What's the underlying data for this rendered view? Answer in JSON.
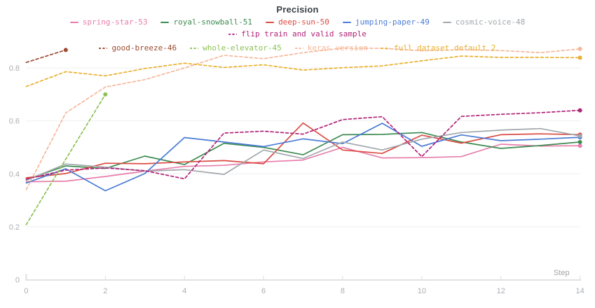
{
  "chart_data": {
    "type": "line",
    "title": "Precision",
    "xlabel": "Step",
    "ylabel": "",
    "x_range": [
      0,
      14
    ],
    "x_ticks": [
      0,
      2,
      4,
      6,
      8,
      10,
      12,
      14
    ],
    "y_ticks": [
      0,
      0.2,
      0.4,
      0.6,
      0.8
    ],
    "ylim": [
      0,
      0.95
    ],
    "grid": "horizontal",
    "legend_position": "top",
    "x": [
      0,
      1,
      2,
      3,
      4,
      5,
      6,
      7,
      8,
      9,
      10,
      11,
      12,
      13,
      14
    ],
    "series": [
      {
        "name": "spring-star-53",
        "color": "#e77daa",
        "dash": false,
        "values": [
          0.37,
          0.372,
          0.39,
          0.41,
          0.428,
          0.432,
          0.445,
          0.452,
          0.5,
          0.46,
          0.461,
          0.465,
          0.512,
          0.505,
          0.506
        ]
      },
      {
        "name": "royal-snowball-51",
        "color": "#3d8b51",
        "dash": false,
        "values": [
          0.378,
          0.43,
          0.42,
          0.467,
          0.435,
          0.515,
          0.5,
          0.472,
          0.548,
          0.549,
          0.556,
          0.52,
          0.496,
          0.507,
          0.52
        ]
      },
      {
        "name": "deep-sun-50",
        "color": "#db4b43",
        "dash": false,
        "values": [
          0.385,
          0.401,
          0.44,
          0.438,
          0.445,
          0.45,
          0.438,
          0.592,
          0.49,
          0.477,
          0.546,
          0.516,
          0.548,
          0.551,
          0.548
        ]
      },
      {
        "name": "jumping-paper-49",
        "color": "#4a7bd5",
        "dash": false,
        "values": [
          0.365,
          0.419,
          0.336,
          0.401,
          0.537,
          0.52,
          0.503,
          0.532,
          0.514,
          0.591,
          0.504,
          0.547,
          0.525,
          0.531,
          0.538
        ]
      },
      {
        "name": "cosmic-voice-48",
        "color": "#a2a7ac",
        "dash": false,
        "values": [
          0.375,
          0.437,
          0.425,
          0.41,
          0.416,
          0.398,
          0.49,
          0.458,
          0.52,
          0.49,
          0.531,
          0.556,
          0.565,
          0.571,
          0.543
        ]
      },
      {
        "name": "flip train and valid sample",
        "color": "#b02378",
        "dash": true,
        "values": [
          0.38,
          0.414,
          0.422,
          0.412,
          0.381,
          0.554,
          0.561,
          0.55,
          0.605,
          0.616,
          0.465,
          0.617,
          0.625,
          0.631,
          0.64
        ]
      },
      {
        "name": "good-breeze-46",
        "color": "#9c4b31",
        "dash": true,
        "values": [
          0.821,
          0.868
        ]
      },
      {
        "name": "whole-elevator-45",
        "color": "#8cc152",
        "dash": true,
        "values": [
          0.208,
          0.455,
          0.7
        ]
      },
      {
        "name": "keras version",
        "color": "#f5b79a",
        "dash": true,
        "values": [
          0.34,
          0.63,
          0.728,
          0.756,
          0.8,
          0.848,
          0.835,
          0.858,
          0.875,
          0.874,
          0.865,
          0.869,
          0.866,
          0.858,
          0.872
        ]
      },
      {
        "name": "full dataset default 2",
        "color": "#e9b02e",
        "dash": true,
        "values": [
          0.73,
          0.786,
          0.77,
          0.798,
          0.818,
          0.802,
          0.812,
          0.792,
          0.801,
          0.808,
          0.827,
          0.845,
          0.84,
          0.84,
          0.839
        ]
      }
    ]
  }
}
